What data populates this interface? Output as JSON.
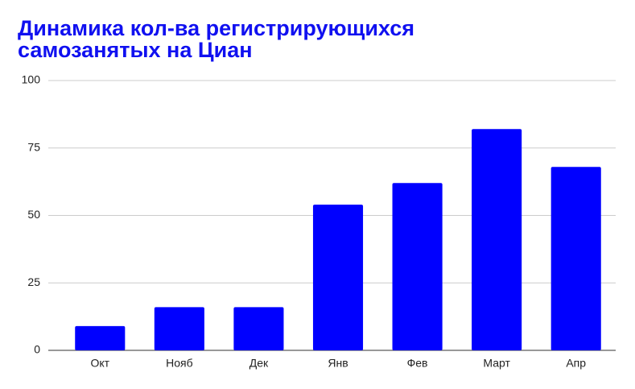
{
  "chart_data": {
    "type": "bar",
    "title": "Динамика кол-ва регистрирующихся самозанятых на Циан",
    "categories": [
      "Окт",
      "Нояб",
      "Дек",
      "Янв",
      "Фев",
      "Март",
      "Апр"
    ],
    "values": [
      9,
      16,
      16,
      54,
      62,
      82,
      68
    ],
    "color": "#0000ff",
    "ylim": [
      0,
      100
    ],
    "yticks": [
      0,
      25,
      50,
      75,
      100
    ],
    "grid": true
  }
}
